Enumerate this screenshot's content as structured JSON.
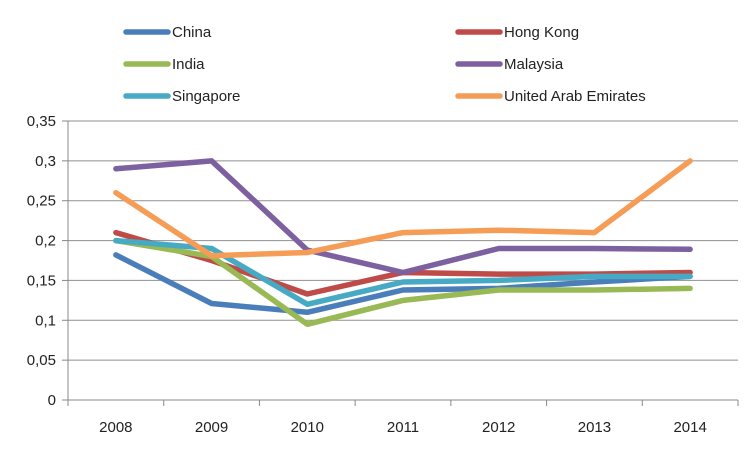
{
  "chart_data": {
    "type": "line",
    "title": "",
    "xlabel": "",
    "ylabel": "",
    "categories": [
      "2008",
      "2009",
      "2010",
      "2011",
      "2012",
      "2013",
      "2014"
    ],
    "ylim": [
      0,
      0.35
    ],
    "yticks": [
      "0",
      "0,05",
      "0,1",
      "0,15",
      "0,2",
      "0,25",
      "0,3",
      "0,35"
    ],
    "grid": "horizontal",
    "legend": "top",
    "series": [
      {
        "name": "China",
        "color": "#4a7ebb",
        "values": [
          0.182,
          0.121,
          0.11,
          0.138,
          0.14,
          0.148,
          0.155
        ]
      },
      {
        "name": "Hong Kong",
        "color": "#be4b48",
        "values": [
          0.21,
          0.175,
          0.133,
          0.16,
          0.158,
          0.158,
          0.16
        ]
      },
      {
        "name": "India",
        "color": "#98b954",
        "values": [
          0.2,
          0.18,
          0.095,
          0.125,
          0.138,
          0.138,
          0.14
        ]
      },
      {
        "name": "Malaysia",
        "color": "#7d60a0",
        "values": [
          0.29,
          0.3,
          0.188,
          0.16,
          0.19,
          0.19,
          0.189
        ]
      },
      {
        "name": "Singapore",
        "color": "#46aac5",
        "values": [
          0.2,
          0.19,
          0.12,
          0.148,
          0.15,
          0.155,
          0.155
        ]
      },
      {
        "name": "United Arab Emirates",
        "color": "#f59d56",
        "values": [
          0.26,
          0.181,
          0.185,
          0.21,
          0.213,
          0.21,
          0.3
        ]
      }
    ]
  }
}
